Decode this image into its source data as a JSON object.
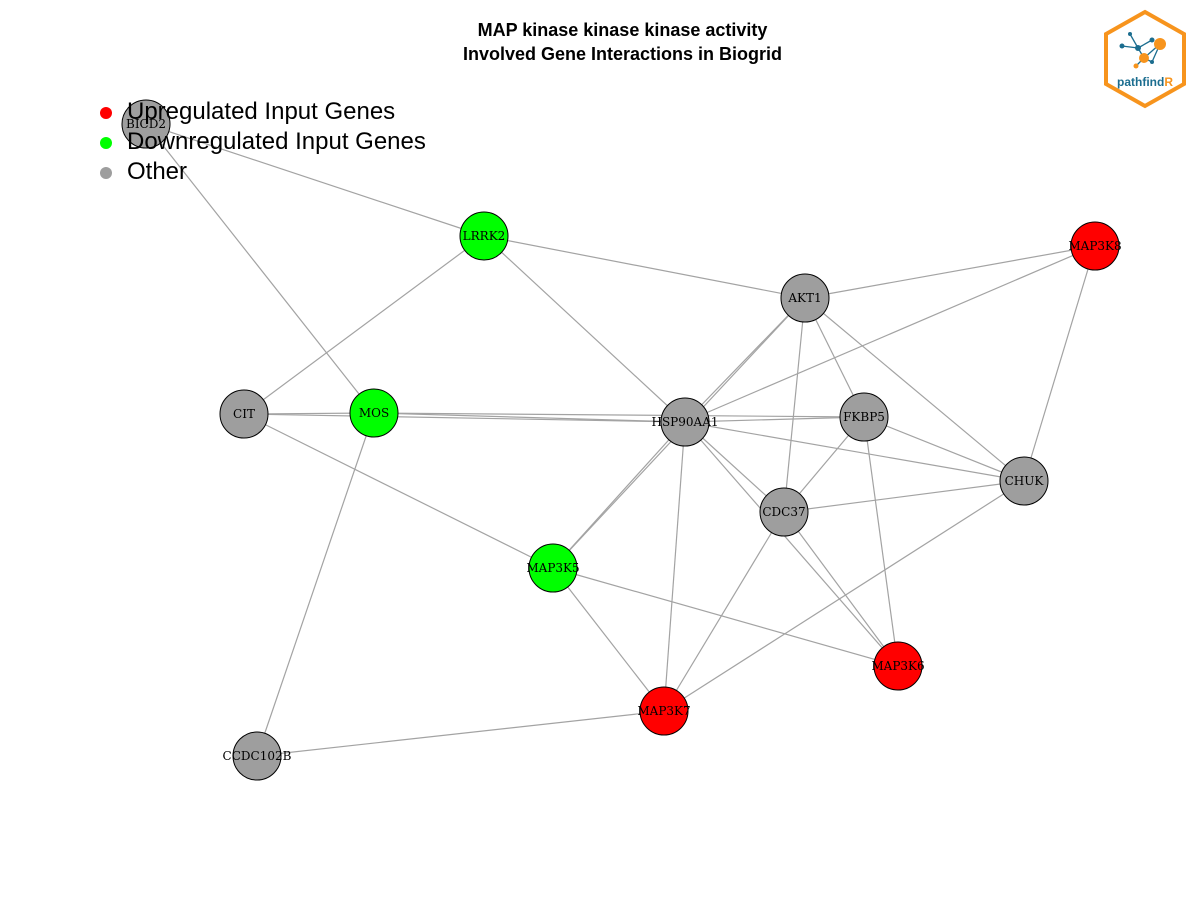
{
  "title": {
    "line1": "MAP kinase kinase kinase activity",
    "line2": "Involved Gene Interactions in Biogrid"
  },
  "colors": {
    "upregulated": "#ff0000",
    "downregulated": "#00ff00",
    "other": "#9e9e9e",
    "edge": "#a3a3a3",
    "logo_orange": "#f7941d",
    "logo_blue": "#1b6d8f"
  },
  "legend": [
    {
      "label": "Upregulated Input Genes",
      "category": "upregulated"
    },
    {
      "label": "Downregulated Input Genes",
      "category": "downregulated"
    },
    {
      "label": "Other",
      "category": "other"
    }
  ],
  "nodes": [
    {
      "id": "BICD2",
      "category": "other"
    },
    {
      "id": "LRRK2",
      "category": "downregulated"
    },
    {
      "id": "MAP3K8",
      "category": "upregulated"
    },
    {
      "id": "AKT1",
      "category": "other"
    },
    {
      "id": "CIT",
      "category": "other"
    },
    {
      "id": "MOS",
      "category": "downregulated"
    },
    {
      "id": "HSP90AA1",
      "category": "other"
    },
    {
      "id": "FKBP5",
      "category": "other"
    },
    {
      "id": "CHUK",
      "category": "other"
    },
    {
      "id": "CDC37",
      "category": "other"
    },
    {
      "id": "MAP3K5",
      "category": "downregulated"
    },
    {
      "id": "MAP3K6",
      "category": "upregulated"
    },
    {
      "id": "MAP3K7",
      "category": "upregulated"
    },
    {
      "id": "CCDC102B",
      "category": "other"
    }
  ],
  "edges": [
    [
      "BICD2",
      "LRRK2"
    ],
    [
      "BICD2",
      "MOS"
    ],
    [
      "LRRK2",
      "AKT1"
    ],
    [
      "LRRK2",
      "HSP90AA1"
    ],
    [
      "LRRK2",
      "CIT"
    ],
    [
      "MAP3K8",
      "AKT1"
    ],
    [
      "MAP3K8",
      "HSP90AA1"
    ],
    [
      "MAP3K8",
      "CHUK"
    ],
    [
      "AKT1",
      "HSP90AA1"
    ],
    [
      "AKT1",
      "FKBP5"
    ],
    [
      "AKT1",
      "CDC37"
    ],
    [
      "AKT1",
      "CHUK"
    ],
    [
      "AKT1",
      "MAP3K5"
    ],
    [
      "CIT",
      "MOS"
    ],
    [
      "CIT",
      "HSP90AA1"
    ],
    [
      "CIT",
      "MAP3K5"
    ],
    [
      "MOS",
      "HSP90AA1"
    ],
    [
      "MOS",
      "FKBP5"
    ],
    [
      "MOS",
      "CCDC102B"
    ],
    [
      "HSP90AA1",
      "FKBP5"
    ],
    [
      "HSP90AA1",
      "CHUK"
    ],
    [
      "HSP90AA1",
      "CDC37"
    ],
    [
      "HSP90AA1",
      "MAP3K5"
    ],
    [
      "HSP90AA1",
      "MAP3K6"
    ],
    [
      "HSP90AA1",
      "MAP3K7"
    ],
    [
      "FKBP5",
      "CHUK"
    ],
    [
      "FKBP5",
      "CDC37"
    ],
    [
      "FKBP5",
      "MAP3K6"
    ],
    [
      "CDC37",
      "CHUK"
    ],
    [
      "CDC37",
      "MAP3K6"
    ],
    [
      "CDC37",
      "MAP3K7"
    ],
    [
      "CHUK",
      "MAP3K7"
    ],
    [
      "MAP3K5",
      "MAP3K6"
    ],
    [
      "MAP3K5",
      "MAP3K7"
    ],
    [
      "MAP3K7",
      "CCDC102B"
    ]
  ],
  "logo": {
    "text_main": "pathfind",
    "text_accent": "R"
  }
}
